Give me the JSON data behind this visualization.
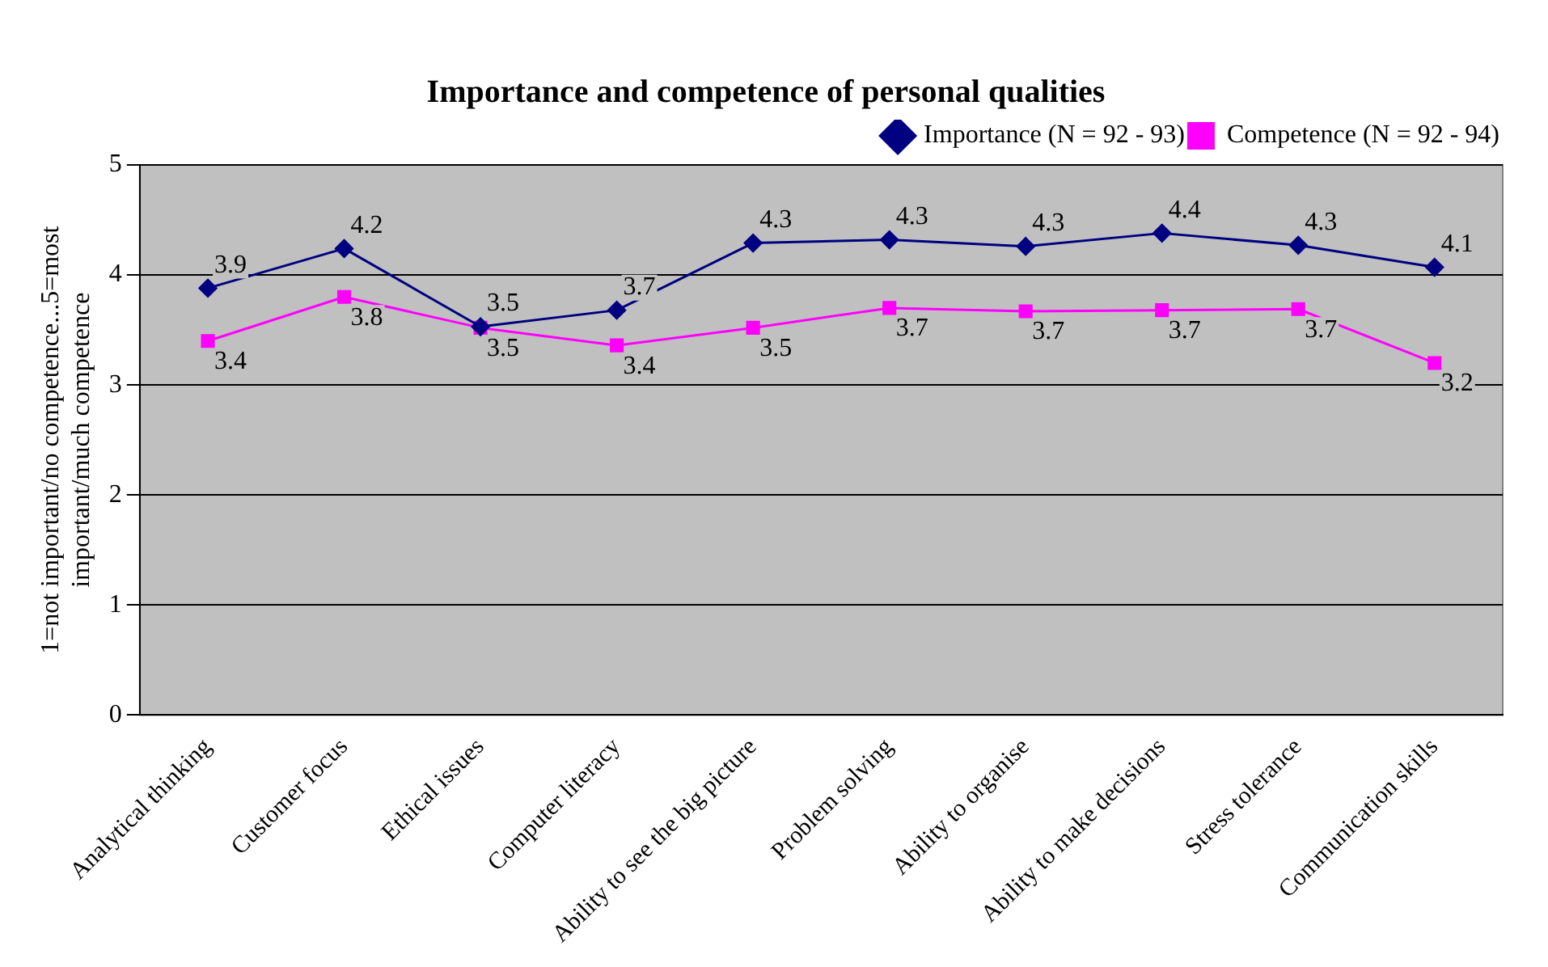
{
  "chart_data": {
    "type": "line",
    "title": "Importance and competence of personal qualities",
    "ylabel": "1=not important/no competence...5=most important/much competence",
    "categories": [
      "Analytical thinking",
      "Customer focus",
      "Ethical issues",
      "Computer literacy",
      "Ability to see the big picture",
      "Problem solving",
      "Ability to organise",
      "Ability to make decisions",
      "Stress tolerance",
      "Communication skills"
    ],
    "series": [
      {
        "name": "Importance (N = 92 - 93)",
        "color": "#000080",
        "marker": "diamond",
        "values": [
          3.88,
          4.24,
          3.53,
          3.68,
          4.29,
          4.32,
          4.26,
          4.38,
          4.27,
          4.07
        ],
        "value_labels": [
          "3.9",
          "4.2",
          "3.5",
          "3.7",
          "4.3",
          "4.3",
          "4.3",
          "4.4",
          "4.3",
          "4.1"
        ]
      },
      {
        "name": "Competence (N = 92 - 94)",
        "color": "#ff00ff",
        "marker": "square",
        "values": [
          3.4,
          3.8,
          3.52,
          3.36,
          3.52,
          3.7,
          3.67,
          3.68,
          3.69,
          3.2
        ],
        "value_labels": [
          "3.4",
          "3.8",
          "3.5",
          "3.4",
          "3.5",
          "3.7",
          "3.7",
          "3.7",
          "3.7",
          "3.2"
        ]
      }
    ],
    "ylim": [
      0,
      5
    ],
    "yticks": [
      0,
      1,
      2,
      3,
      4,
      5
    ],
    "grid": "y",
    "legend": "top right",
    "line_style": "solid"
  }
}
